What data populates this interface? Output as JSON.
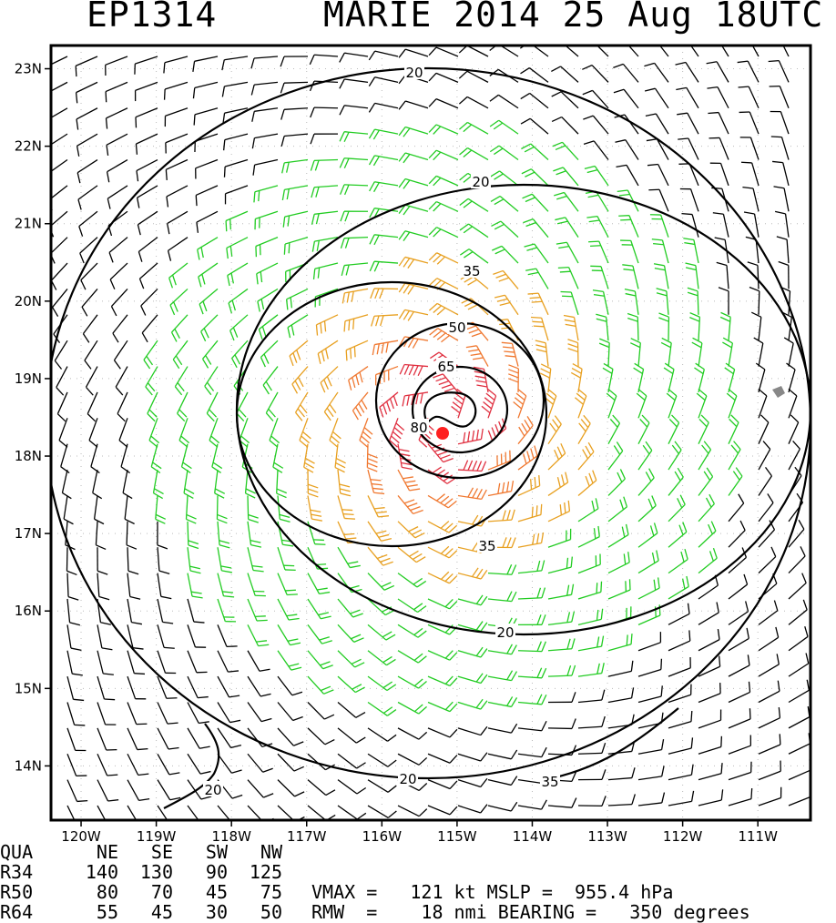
{
  "header": {
    "storm_id": "EP1314",
    "storm_info": "MARIE 2014 25 Aug 18UTC"
  },
  "chart_data": {
    "type": "wind-barb map",
    "title": "EP1314   MARIE 2014 25 Aug 18UTC",
    "x_ticks": [
      "120W",
      "119W",
      "118W",
      "117W",
      "116W",
      "115W",
      "114W",
      "113W",
      "112W",
      "111W"
    ],
    "y_ticks": [
      "23N",
      "22N",
      "21N",
      "20N",
      "19N",
      "18N",
      "17N",
      "16N",
      "15N",
      "14N"
    ],
    "xlim": [
      -120.4,
      -110.3
    ],
    "ylim": [
      13.3,
      23.3
    ],
    "grid": true,
    "center": {
      "lon": -115.3,
      "lat": 18.25
    },
    "contour_labels": [
      "20",
      "20",
      "20",
      "35",
      "35",
      "50",
      "65",
      "80",
      "20",
      "35"
    ],
    "colors": {
      "weak": "#000000",
      "ts": "#22cc22",
      "strong": "#e8a020",
      "hurricane_orange": "#f07830",
      "hurricane": "#e03040",
      "center": "#ff2020"
    }
  },
  "stats": {
    "headers": [
      "QUA",
      "NE",
      "SE",
      "SW",
      "NW"
    ],
    "rows": [
      [
        "R34",
        "140",
        "130",
        "90",
        "125"
      ],
      [
        "R50",
        "80",
        "70",
        "45",
        "75"
      ],
      [
        "R64",
        "55",
        "45",
        "30",
        "50"
      ]
    ],
    "vmax_line": "VMAX =   121 kt MSLP =  955.4 hPa",
    "rmw_line": "RMW  =    18 nmi BEARING =   350 degrees"
  }
}
